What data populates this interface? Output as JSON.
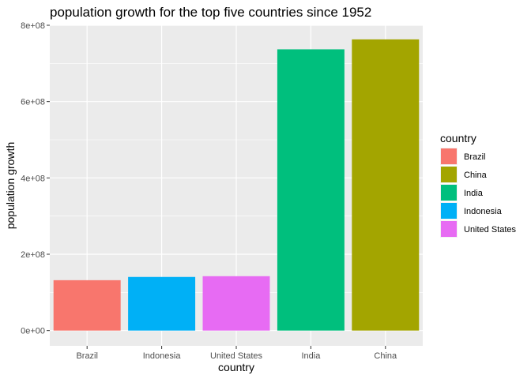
{
  "chart_data": {
    "type": "bar",
    "title": "population growth for the top five countries since 1952",
    "xlabel": "country",
    "ylabel": "population growth",
    "categories": [
      "Brazil",
      "Indonesia",
      "United States",
      "India",
      "China"
    ],
    "values": [
      132000000,
      140500000,
      142500000,
      737000000,
      763000000
    ],
    "colors": [
      "#F8766D",
      "#A3A500",
      "#00BF7D",
      "#00B0F6",
      "#E76BF3"
    ],
    "bar_colors": [
      "#F8766D",
      "#00B0F6",
      "#E76BF3",
      "#00BF7D",
      "#A3A500"
    ],
    "ylim": [
      -40000000,
      800000000
    ],
    "yticks": [
      0,
      200000000,
      400000000,
      600000000,
      800000000
    ],
    "ytick_labels": [
      "0e+00",
      "2e+08",
      "4e+08",
      "6e+08",
      "8e+08"
    ],
    "grid": true,
    "legend": {
      "title": "country",
      "position": "right",
      "entries": [
        "Brazil",
        "China",
        "India",
        "Indonesia",
        "United States"
      ]
    }
  }
}
